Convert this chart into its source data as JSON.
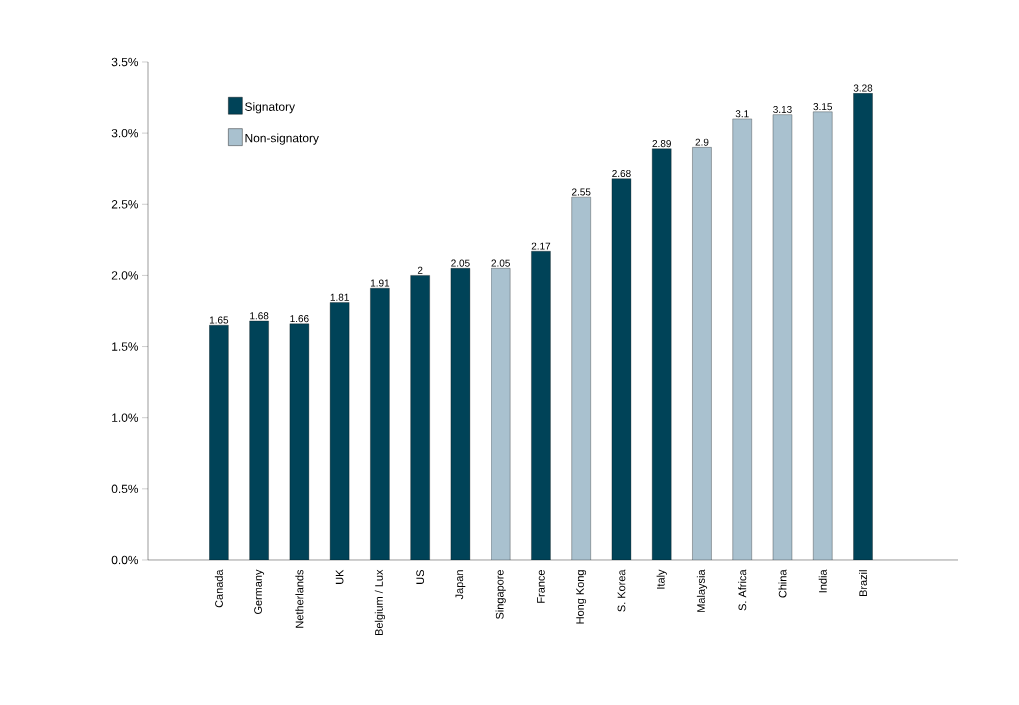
{
  "chart_data": {
    "type": "bar",
    "categories": [
      "Canada",
      "Germany",
      "Netherlands",
      "UK",
      "Belgium / Lux",
      "US",
      "Japan",
      "Singapore",
      "France",
      "Hong Kong",
      "S. Korea",
      "Italy",
      "Malaysia",
      "S. Africa",
      "China",
      "India",
      "Brazil"
    ],
    "series": [
      {
        "name": "Signatory",
        "color": "#004358",
        "values": [
          1.65,
          1.68,
          1.66,
          1.81,
          1.91,
          2,
          2.05,
          null,
          2.17,
          null,
          2.68,
          2.89,
          null,
          null,
          null,
          null,
          3.28
        ]
      },
      {
        "name": "Non-signatory",
        "color": "#a9c1cf",
        "values": [
          null,
          null,
          null,
          null,
          null,
          null,
          null,
          2.05,
          null,
          2.55,
          null,
          null,
          2.9,
          3.1,
          3.13,
          3.15,
          null
        ]
      }
    ],
    "ylim": [
      0,
      3.5
    ],
    "yticks": [
      {
        "value": 0,
        "label": "0.0%"
      },
      {
        "value": 0.5,
        "label": "0.5%"
      },
      {
        "value": 1,
        "label": "1.0%"
      },
      {
        "value": 1.5,
        "label": "1.5%"
      },
      {
        "value": 2,
        "label": "2.0%"
      },
      {
        "value": 2.5,
        "label": "2.5%"
      },
      {
        "value": 3,
        "label": "3.0%"
      },
      {
        "value": 3.5,
        "label": "3.5%"
      }
    ],
    "data_labels": true,
    "grid": false,
    "legend": "top left"
  }
}
